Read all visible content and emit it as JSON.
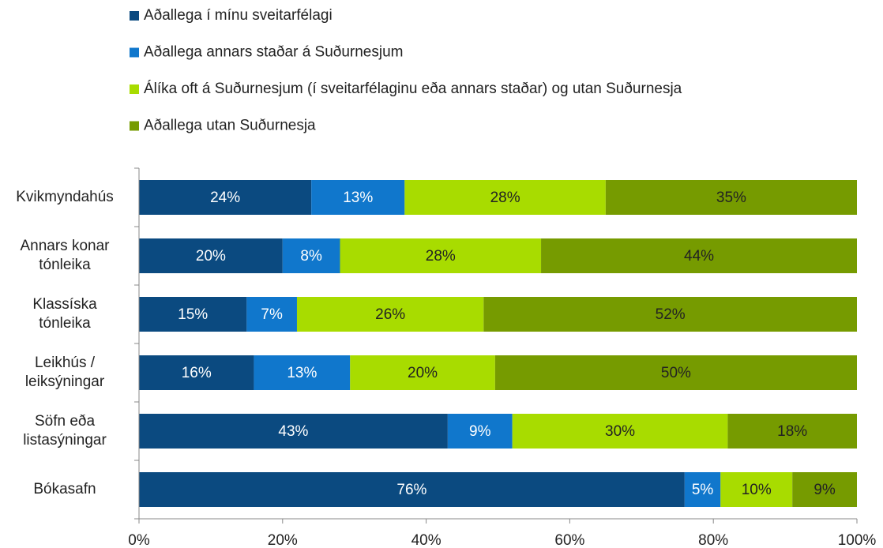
{
  "chart_data": {
    "type": "stacked-bar-horizontal",
    "categories": [
      "Kvikmyndahús",
      "Annars konar tónleika",
      "Klassíska tónleika",
      "Leikhús / leiksýningar",
      "Söfn eða listasýningar",
      "Bókasafn"
    ],
    "series": [
      {
        "name": "Aðallega í mínu sveitarfélagi",
        "color": "#0b4a80",
        "values": [
          24,
          20,
          15,
          16,
          43,
          76
        ],
        "value_labels": [
          "24%",
          "20%",
          "15%",
          "16%",
          "43%",
          "76%"
        ]
      },
      {
        "name": "Aðallega annars staðar á Suðurnesjum",
        "color": "#1077cc",
        "values": [
          13,
          8,
          7,
          13.4,
          9,
          5
        ],
        "value_labels": [
          "13%",
          "8%",
          "7%",
          "13%",
          "9%",
          "5%"
        ]
      },
      {
        "name": "Álíka oft á Suðurnesjum (í sveitarfélaginu eða annars staðar) og utan Suðurnesja",
        "color": "#a8dc00",
        "values": [
          28,
          28,
          26,
          20.2,
          30,
          10
        ],
        "value_labels": [
          "28%",
          "28%",
          "26%",
          "20%",
          "30%",
          "10%"
        ]
      },
      {
        "name": "Aðallega utan Suðurnesja",
        "color": "#769b00",
        "values": [
          35,
          44,
          52,
          50.4,
          18,
          9
        ],
        "value_labels": [
          "35%",
          "44%",
          "52%",
          "50%",
          "18%",
          "9%"
        ]
      }
    ],
    "xlim": [
      0,
      100
    ],
    "xticks": [
      {
        "value": 0,
        "label": "0%"
      },
      {
        "value": 20,
        "label": "20%"
      },
      {
        "value": 40,
        "label": "40%"
      },
      {
        "value": 60,
        "label": "60%"
      },
      {
        "value": 80,
        "label": "80%"
      },
      {
        "value": 100,
        "label": "100%"
      }
    ],
    "legend": "top"
  }
}
